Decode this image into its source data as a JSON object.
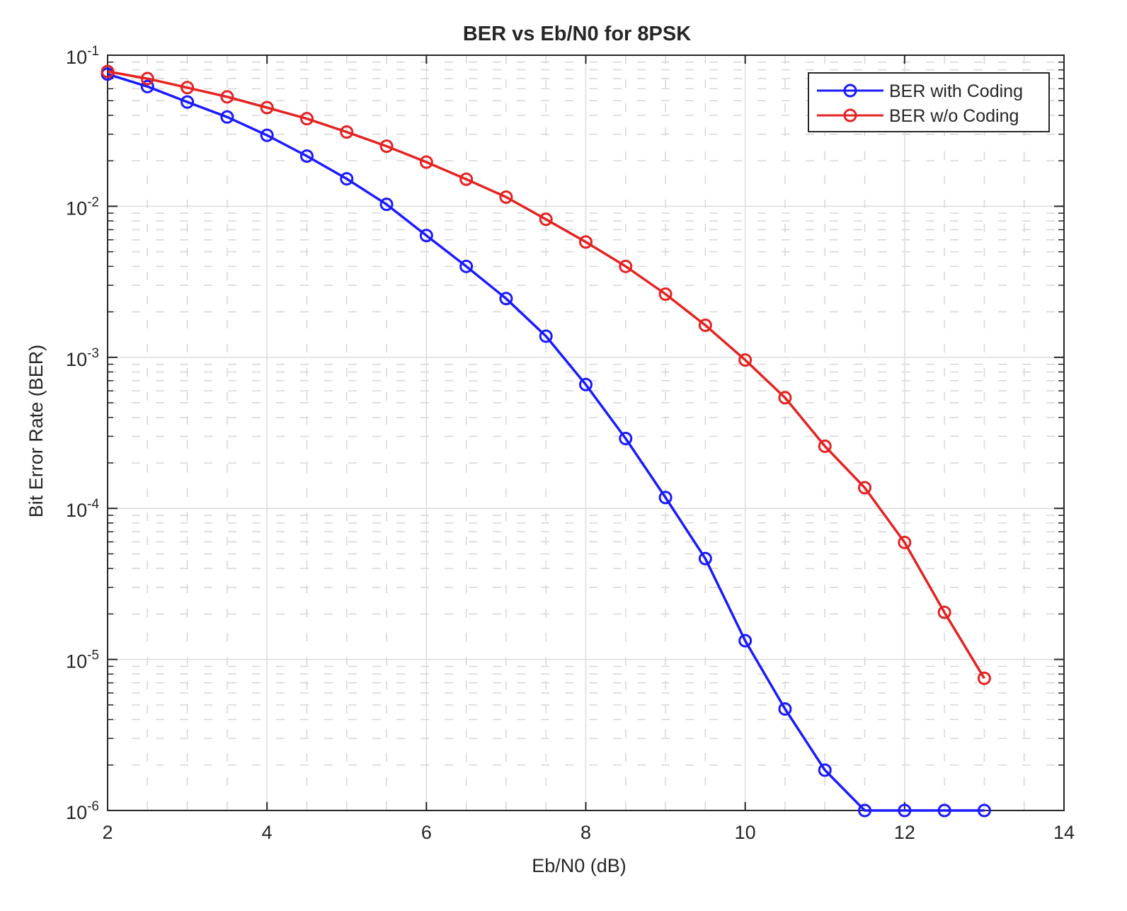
{
  "chart_data": {
    "type": "line",
    "title": "BER vs Eb/N0 for 8PSK",
    "xlabel": "Eb/N0 (dB)",
    "ylabel": "Bit Error Rate (BER)",
    "xlim": [
      2,
      14
    ],
    "ylim": [
      1e-06,
      0.1
    ],
    "yscale": "log",
    "grid": true,
    "minor_grid": true,
    "legend_position": "top-right",
    "x_ticks": [
      2,
      4,
      6,
      8,
      10,
      12,
      14
    ],
    "y_ticks": [
      {
        "value": 0.1,
        "base": "10",
        "exp": "-1"
      },
      {
        "value": 0.01,
        "base": "10",
        "exp": "-2"
      },
      {
        "value": 0.001,
        "base": "10",
        "exp": "-3"
      },
      {
        "value": 0.0001,
        "base": "10",
        "exp": "-4"
      },
      {
        "value": 1e-05,
        "base": "10",
        "exp": "-5"
      },
      {
        "value": 1e-06,
        "base": "10",
        "exp": "-6"
      }
    ],
    "series": [
      {
        "name": "BER with Coding",
        "color": "#1a1aff",
        "x": [
          2,
          2.5,
          3,
          3.5,
          4,
          4.5,
          5,
          5.5,
          6,
          6.5,
          7,
          7.5,
          8,
          8.5,
          9,
          9.5,
          10,
          10.5,
          11,
          11.5,
          12,
          12.5,
          13
        ],
        "y": [
          0.075,
          0.062,
          0.049,
          0.039,
          0.0295,
          0.0215,
          0.0152,
          0.0103,
          0.0064,
          0.004,
          0.00245,
          0.00138,
          0.00066,
          0.00029,
          0.000118,
          4.65e-05,
          1.33e-05,
          4.7e-06,
          1.85e-06,
          1e-06,
          1e-06,
          1e-06,
          1e-06
        ]
      },
      {
        "name": "BER w/o Coding",
        "color": "#e52222",
        "x": [
          2,
          2.5,
          3,
          3.5,
          4,
          4.5,
          5,
          5.5,
          6,
          6.5,
          7,
          7.5,
          8,
          8.5,
          9,
          9.5,
          10,
          10.5,
          11,
          11.5,
          12,
          12.5,
          13
        ],
        "y": [
          0.078,
          0.07,
          0.061,
          0.053,
          0.045,
          0.038,
          0.031,
          0.025,
          0.0196,
          0.0151,
          0.0115,
          0.0082,
          0.0058,
          0.004,
          0.00262,
          0.00163,
          0.00096,
          0.00054,
          0.000258,
          0.000137,
          5.95e-05,
          2.05e-05,
          7.5e-06
        ]
      }
    ]
  }
}
